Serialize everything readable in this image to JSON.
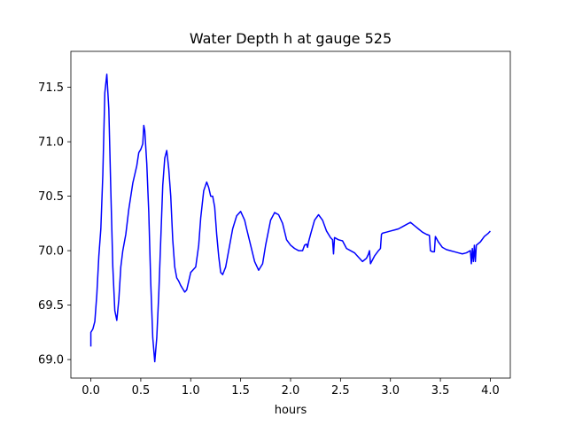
{
  "chart_data": {
    "type": "line",
    "title": "Water Depth h at gauge 525",
    "xlabel": "hours",
    "ylabel": "",
    "xlim": [
      -0.2,
      4.2
    ],
    "ylim": [
      68.83,
      71.83
    ],
    "xticks": [
      0.0,
      0.5,
      1.0,
      1.5,
      2.0,
      2.5,
      3.0,
      3.5,
      4.0
    ],
    "xtick_labels": [
      "0.0",
      "0.5",
      "1.0",
      "1.5",
      "2.0",
      "2.5",
      "3.0",
      "3.5",
      "4.0"
    ],
    "yticks": [
      69.0,
      69.5,
      70.0,
      70.5,
      71.0,
      71.5
    ],
    "ytick_labels": [
      "69.0",
      "69.5",
      "70.0",
      "70.5",
      "71.0",
      "71.5"
    ],
    "grid": false,
    "series": [
      {
        "name": "",
        "color": "#0000ff",
        "x": [
          0.0,
          0.0,
          0.02,
          0.04,
          0.06,
          0.08,
          0.1,
          0.12,
          0.14,
          0.16,
          0.18,
          0.2,
          0.22,
          0.24,
          0.26,
          0.28,
          0.3,
          0.32,
          0.35,
          0.38,
          0.4,
          0.42,
          0.44,
          0.46,
          0.48,
          0.5,
          0.52,
          0.53,
          0.54,
          0.56,
          0.58,
          0.6,
          0.62,
          0.64,
          0.66,
          0.68,
          0.7,
          0.72,
          0.74,
          0.76,
          0.78,
          0.8,
          0.82,
          0.84,
          0.86,
          0.88,
          0.9,
          0.92,
          0.94,
          0.96,
          0.98,
          1.0,
          1.02,
          1.05,
          1.08,
          1.1,
          1.13,
          1.16,
          1.18,
          1.2,
          1.22,
          1.24,
          1.26,
          1.28,
          1.3,
          1.32,
          1.35,
          1.38,
          1.42,
          1.46,
          1.5,
          1.54,
          1.56,
          1.6,
          1.64,
          1.68,
          1.72,
          1.75,
          1.8,
          1.84,
          1.88,
          1.92,
          1.96,
          2.0,
          2.04,
          2.08,
          2.12,
          2.14,
          2.16,
          2.17,
          2.18,
          2.2,
          2.24,
          2.28,
          2.32,
          2.36,
          2.4,
          2.42,
          2.43,
          2.44,
          2.48,
          2.52,
          2.56,
          2.6,
          2.64,
          2.68,
          2.72,
          2.76,
          2.78,
          2.79,
          2.8,
          2.84,
          2.88,
          2.9,
          2.91,
          2.92,
          2.96,
          3.0,
          3.04,
          3.08,
          3.12,
          3.16,
          3.2,
          3.24,
          3.28,
          3.32,
          3.36,
          3.39,
          3.4,
          3.42,
          3.44,
          3.45,
          3.48,
          3.52,
          3.56,
          3.6,
          3.64,
          3.68,
          3.72,
          3.76,
          3.8,
          3.81,
          3.82,
          3.83,
          3.84,
          3.85,
          3.86,
          3.9,
          3.94,
          3.98,
          4.0
        ],
        "y": [
          69.12,
          69.25,
          69.28,
          69.35,
          69.6,
          69.95,
          70.2,
          70.7,
          71.45,
          71.62,
          71.3,
          70.55,
          69.85,
          69.45,
          69.36,
          69.55,
          69.85,
          70.0,
          70.15,
          70.38,
          70.5,
          70.62,
          70.7,
          70.78,
          70.9,
          70.93,
          70.98,
          71.15,
          71.1,
          70.8,
          70.35,
          69.7,
          69.2,
          68.98,
          69.2,
          69.6,
          70.1,
          70.6,
          70.85,
          70.92,
          70.75,
          70.5,
          70.1,
          69.85,
          69.75,
          69.72,
          69.68,
          69.65,
          69.62,
          69.64,
          69.72,
          69.8,
          69.82,
          69.85,
          70.05,
          70.3,
          70.55,
          70.63,
          70.58,
          70.5,
          70.5,
          70.4,
          70.15,
          69.95,
          69.8,
          69.78,
          69.85,
          70.0,
          70.2,
          70.32,
          70.36,
          70.28,
          70.2,
          70.05,
          69.9,
          69.82,
          69.88,
          70.05,
          70.28,
          70.35,
          70.33,
          70.25,
          70.1,
          70.05,
          70.02,
          70.0,
          70.0,
          70.05,
          70.06,
          70.03,
          70.08,
          70.15,
          70.28,
          70.33,
          70.28,
          70.18,
          70.12,
          70.1,
          69.97,
          70.12,
          70.1,
          70.09,
          70.02,
          70.0,
          69.98,
          69.94,
          69.9,
          69.93,
          69.97,
          70.0,
          69.88,
          69.95,
          70.0,
          70.02,
          70.15,
          70.16,
          70.17,
          70.18,
          70.19,
          70.2,
          70.22,
          70.24,
          70.26,
          70.23,
          70.2,
          70.17,
          70.15,
          70.14,
          70.0,
          69.99,
          69.99,
          70.13,
          70.08,
          70.03,
          70.01,
          70.0,
          69.99,
          69.98,
          69.97,
          69.98,
          70.0,
          69.88,
          70.02,
          69.9,
          70.05,
          69.9,
          70.05,
          70.08,
          70.13,
          70.16,
          70.18
        ]
      }
    ]
  }
}
